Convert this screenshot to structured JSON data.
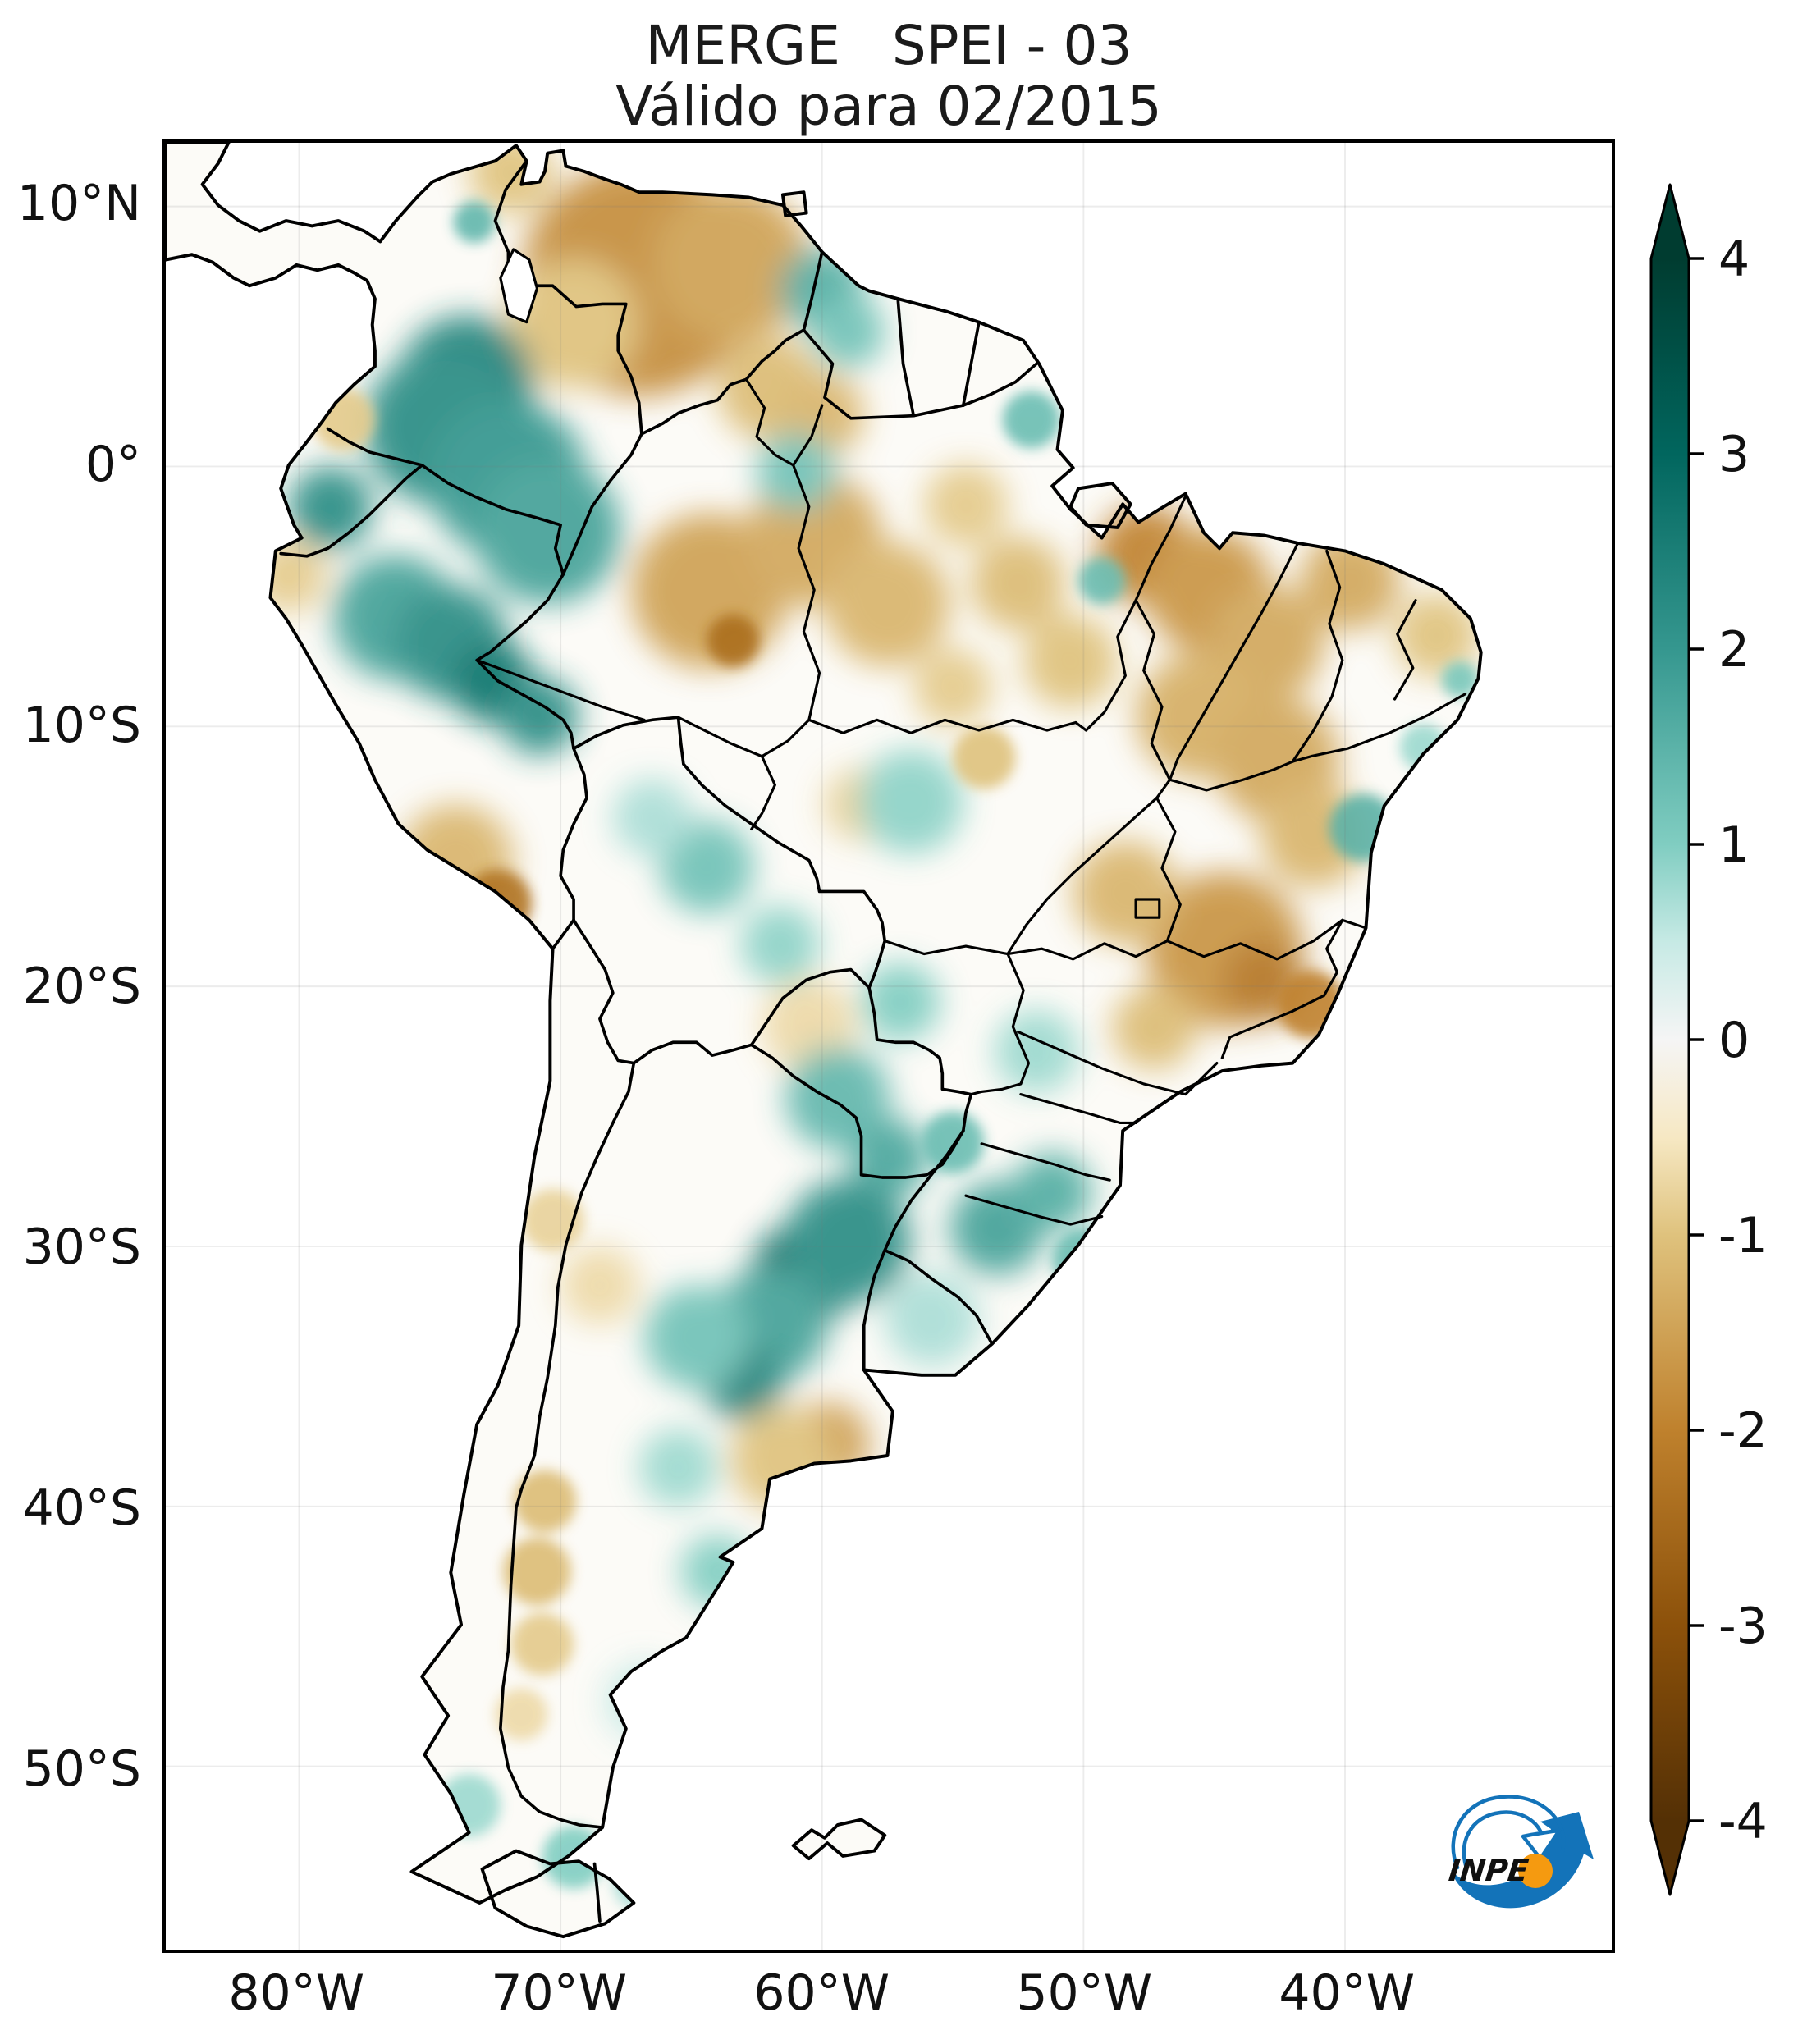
{
  "title": {
    "line1": "MERGE   SPEI - 03",
    "line2": "Válido para 02/2015"
  },
  "axes": {
    "y_ticks": [
      {
        "label": "10°N",
        "lat": 10
      },
      {
        "label": "0°",
        "lat": 0
      },
      {
        "label": "10°S",
        "lat": -10
      },
      {
        "label": "20°S",
        "lat": -20
      },
      {
        "label": "30°S",
        "lat": -30
      },
      {
        "label": "40°S",
        "lat": -40
      },
      {
        "label": "50°S",
        "lat": -50
      }
    ],
    "x_ticks": [
      {
        "label": "80°W",
        "lon": -80
      },
      {
        "label": "70°W",
        "lon": -70
      },
      {
        "label": "60°W",
        "lon": -60
      },
      {
        "label": "50°W",
        "lon": -50
      },
      {
        "label": "40°W",
        "lon": -40
      }
    ]
  },
  "colorbar": {
    "tick_labels": [
      "4",
      "3",
      "2",
      "1",
      "0",
      "-1",
      "-2",
      "-3",
      "-4"
    ],
    "tick_values": [
      4,
      3,
      2,
      1,
      0,
      -1,
      -2,
      -3,
      -4
    ],
    "extend": "both",
    "cmap_name": "BrBG",
    "anchors": [
      {
        "v": -4,
        "c": "#543005"
      },
      {
        "v": -3,
        "c": "#8c510a"
      },
      {
        "v": -2,
        "c": "#bf812d"
      },
      {
        "v": -1,
        "c": "#dfc27d"
      },
      {
        "v": -0.5,
        "c": "#f6e8c3"
      },
      {
        "v": 0,
        "c": "#f5f5f5"
      },
      {
        "v": 0.5,
        "c": "#c7eae5"
      },
      {
        "v": 1,
        "c": "#80cdc1"
      },
      {
        "v": 2,
        "c": "#35978f"
      },
      {
        "v": 3,
        "c": "#01665e"
      },
      {
        "v": 4,
        "c": "#003c30"
      }
    ]
  },
  "map": {
    "extent": {
      "west": -85.1,
      "east": -29.8,
      "north": 12.45,
      "south": -57.05
    },
    "land_color": "#fcfbf7",
    "border_color": "#000000",
    "gridline_color": "rgba(120,120,120,0.14)",
    "region_format": "[lon_deg_east, lat_deg_north, spei_value, radius_deg]",
    "anomaly_regions": [
      [
        -65.6,
        8.3,
        -2.7,
        2.2
      ],
      [
        -67.0,
        7.2,
        -1.8,
        4.5
      ],
      [
        -63.5,
        7.8,
        -1.5,
        3.0
      ],
      [
        -69.5,
        5.5,
        -1.0,
        2.5
      ],
      [
        -60.0,
        6.8,
        1.6,
        1.6
      ],
      [
        -59.0,
        5.2,
        1.2,
        1.4
      ],
      [
        -71.9,
        11.3,
        -1.0,
        1.6
      ],
      [
        -73.3,
        9.4,
        1.4,
        0.8
      ],
      [
        -62.0,
        3.0,
        -1.1,
        2.0
      ],
      [
        -60.0,
        2.0,
        -1.2,
        1.6
      ],
      [
        -73.6,
        3.2,
        2.4,
        2.6
      ],
      [
        -74.5,
        1.5,
        2.2,
        3.0
      ],
      [
        -72.0,
        -0.5,
        2.0,
        3.0
      ],
      [
        -70.5,
        -2.5,
        1.8,
        2.8
      ],
      [
        -78.8,
        -1.6,
        2.2,
        1.6
      ],
      [
        -78.3,
        1.8,
        -0.9,
        1.2
      ],
      [
        -80.4,
        -4.2,
        -0.9,
        1.4
      ],
      [
        -76.3,
        -5.8,
        1.8,
        2.4
      ],
      [
        -74.2,
        -6.8,
        2.2,
        2.2
      ],
      [
        -72.6,
        -8.3,
        2.7,
        1.6
      ],
      [
        -70.8,
        -9.6,
        2.2,
        1.5
      ],
      [
        -72.4,
        -16.8,
        -2.3,
        1.3
      ],
      [
        -74.0,
        -15.2,
        -1.2,
        2.2
      ],
      [
        -64.3,
        -4.8,
        -1.5,
        3.0
      ],
      [
        -63.4,
        -6.7,
        -2.4,
        1.0
      ],
      [
        -60.3,
        -2.8,
        -1.4,
        2.6
      ],
      [
        -57.5,
        -5.3,
        -1.2,
        2.4
      ],
      [
        -61.0,
        -0.2,
        1.2,
        1.5
      ],
      [
        -49.3,
        -4.4,
        1.3,
        0.9
      ],
      [
        -47.6,
        -3.4,
        -2.0,
        1.9
      ],
      [
        -45.2,
        -4.8,
        -1.7,
        2.4
      ],
      [
        -43.0,
        -6.8,
        -1.4,
        2.2
      ],
      [
        -39.8,
        -4.4,
        -1.4,
        1.9
      ],
      [
        -36.5,
        -6.5,
        -1.0,
        1.6
      ],
      [
        -45.6,
        -9.6,
        -1.3,
        2.4
      ],
      [
        -42.6,
        -11.3,
        -1.4,
        2.4
      ],
      [
        -41.2,
        -14.2,
        -1.2,
        2.0
      ],
      [
        -39.3,
        -13.9,
        1.5,
        1.3
      ],
      [
        -35.6,
        -8.2,
        1.1,
        0.7
      ],
      [
        -37.0,
        -10.8,
        0.8,
        0.9
      ],
      [
        -52.0,
        1.8,
        1.3,
        1.1
      ],
      [
        -54.5,
        -1.5,
        -0.9,
        1.6
      ],
      [
        -52.5,
        -4.5,
        -1.1,
        1.8
      ],
      [
        -50.5,
        -7.5,
        -1.0,
        1.8
      ],
      [
        -55.0,
        -8.5,
        -0.9,
        1.5
      ],
      [
        -44.6,
        -18.6,
        -1.7,
        3.0
      ],
      [
        -43.1,
        -19.8,
        -2.2,
        1.6
      ],
      [
        -41.3,
        -20.7,
        -2.0,
        1.3
      ],
      [
        -48.4,
        -16.4,
        -1.2,
        2.0
      ],
      [
        -47.3,
        -21.6,
        -1.1,
        1.6
      ],
      [
        -58.5,
        -13.0,
        -0.8,
        1.4
      ],
      [
        -56.6,
        -12.9,
        0.9,
        2.0
      ],
      [
        -53.8,
        -11.2,
        -1.0,
        1.2
      ],
      [
        -64.4,
        -15.4,
        1.2,
        1.8
      ],
      [
        -66.5,
        -13.5,
        0.7,
        1.5
      ],
      [
        -61.6,
        -18.4,
        0.9,
        1.5
      ],
      [
        -57.0,
        -20.6,
        1.0,
        1.5
      ],
      [
        -60.5,
        -21.5,
        -0.7,
        1.8
      ],
      [
        -59.4,
        -24.3,
        1.4,
        2.0
      ],
      [
        -57.4,
        -26.6,
        1.7,
        1.5
      ],
      [
        -55.0,
        -26.0,
        1.3,
        1.2
      ],
      [
        -51.8,
        -22.5,
        0.8,
        1.6
      ],
      [
        -60.7,
        -31.1,
        3.0,
        2.0
      ],
      [
        -59.0,
        -29.8,
        2.2,
        2.4
      ],
      [
        -62.0,
        -33.0,
        1.8,
        2.2
      ],
      [
        -63.0,
        -35.2,
        2.4,
        1.5
      ],
      [
        -64.8,
        -33.5,
        1.2,
        2.0
      ],
      [
        -53.3,
        -29.3,
        1.8,
        1.8
      ],
      [
        -51.2,
        -27.9,
        1.6,
        1.5
      ],
      [
        -50.0,
        -30.5,
        1.3,
        1.2
      ],
      [
        -55.8,
        -32.8,
        0.7,
        1.8
      ],
      [
        -59.8,
        -37.6,
        -1.6,
        1.6
      ],
      [
        -61.5,
        -38.2,
        -1.0,
        2.0
      ],
      [
        -62.3,
        -43.8,
        1.5,
        1.1
      ],
      [
        -64.0,
        -42.5,
        1.0,
        1.4
      ],
      [
        -65.5,
        -38.5,
        0.8,
        1.5
      ],
      [
        -68.5,
        -31.5,
        -0.7,
        1.5
      ],
      [
        -70.3,
        -29.0,
        -0.8,
        1.2
      ],
      [
        -70.6,
        -39.8,
        -1.1,
        1.2
      ],
      [
        -70.9,
        -42.5,
        -1.1,
        1.3
      ],
      [
        -70.7,
        -45.3,
        -0.9,
        1.2
      ],
      [
        -71.5,
        -48.0,
        -0.7,
        1.0
      ],
      [
        -73.5,
        -51.5,
        0.8,
        1.2
      ],
      [
        -69.5,
        -53.5,
        1.0,
        1.2
      ],
      [
        -67.0,
        -54.5,
        0.7,
        1.0
      ],
      [
        -66.8,
        -47.5,
        0.5,
        1.5
      ]
    ]
  },
  "logo": {
    "text": "INPE",
    "blue": "#1373b9",
    "orange": "#f59a10"
  }
}
